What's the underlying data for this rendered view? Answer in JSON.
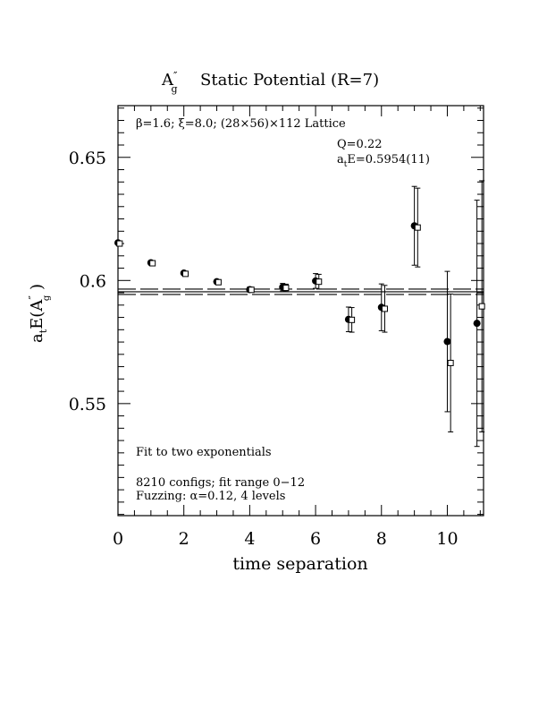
{
  "chart_data": {
    "type": "scatter",
    "title": {
      "main": "A",
      "prime": "″",
      "sub": "g",
      "rest": "Static Potential (R=7)"
    },
    "xlabel": "time separation",
    "ylabel": {
      "prefix": "a",
      "prefix_sub": "t",
      "body": "E(A",
      "prime": "″",
      "sub": "g",
      "suffix": " )"
    },
    "xlim": [
      0,
      11.1
    ],
    "ylim": [
      0.5045,
      0.671
    ],
    "xticks": [
      0,
      2,
      4,
      6,
      8,
      10
    ],
    "xtick_labels": [
      "0",
      "2",
      "4",
      "6",
      "8",
      "10"
    ],
    "yticks": [
      0.55,
      0.6,
      0.65
    ],
    "ytick_labels": [
      "0.55",
      "0.6",
      "0.65"
    ],
    "grid": false,
    "annotations": {
      "lattice": "β=1.6; ξ=8.0; (28×56)×112 Lattice",
      "q": "Q=0.22",
      "energy": "a",
      "energy_sub": "t",
      "energy_rest": "E=0.5954(11)",
      "fit": "Fit to two exponentials",
      "configs": "8210 configs; fit range 0−12",
      "fuzzing": "Fuzzing: α=0.12, 4 levels"
    },
    "fit_band": {
      "center": 0.5954,
      "upper": 0.5965,
      "lower": 0.5943
    },
    "series": [
      {
        "marker": "filled-circle",
        "points": [
          {
            "x": 0,
            "y": 0.6153,
            "err": 0.0004
          },
          {
            "x": 1,
            "y": 0.6072,
            "err": 0.0005
          },
          {
            "x": 2,
            "y": 0.603,
            "err": 0.0006
          },
          {
            "x": 3,
            "y": 0.5995,
            "err": 0.0008
          },
          {
            "x": 4,
            "y": 0.5963,
            "err": 0.001
          },
          {
            "x": 5,
            "y": 0.5973,
            "err": 0.0015
          },
          {
            "x": 6,
            "y": 0.5998,
            "err": 0.003
          },
          {
            "x": 7,
            "y": 0.5842,
            "err": 0.005
          },
          {
            "x": 8,
            "y": 0.5891,
            "err": 0.0095
          },
          {
            "x": 9,
            "y": 0.6222,
            "err": 0.016
          },
          {
            "x": 10,
            "y": 0.5752,
            "err": 0.0285
          },
          {
            "x": 10.9,
            "y": 0.5826,
            "err": 0.05
          }
        ]
      },
      {
        "marker": "open-square",
        "points": [
          {
            "x": 0.05,
            "y": 0.615,
            "err": 0.0004
          },
          {
            "x": 1.05,
            "y": 0.607,
            "err": 0.0005
          },
          {
            "x": 2.05,
            "y": 0.6027,
            "err": 0.0006
          },
          {
            "x": 3.05,
            "y": 0.5993,
            "err": 0.0008
          },
          {
            "x": 4.05,
            "y": 0.5962,
            "err": 0.001
          },
          {
            "x": 5.1,
            "y": 0.597,
            "err": 0.0015
          },
          {
            "x": 6.1,
            "y": 0.5995,
            "err": 0.003
          },
          {
            "x": 7.1,
            "y": 0.584,
            "err": 0.005
          },
          {
            "x": 8.1,
            "y": 0.5885,
            "err": 0.0095
          },
          {
            "x": 9.1,
            "y": 0.6215,
            "err": 0.016
          },
          {
            "x": 10.1,
            "y": 0.5665,
            "err": 0.028
          },
          {
            "x": 11.05,
            "y": 0.5895,
            "err": 0.051
          }
        ]
      }
    ]
  }
}
